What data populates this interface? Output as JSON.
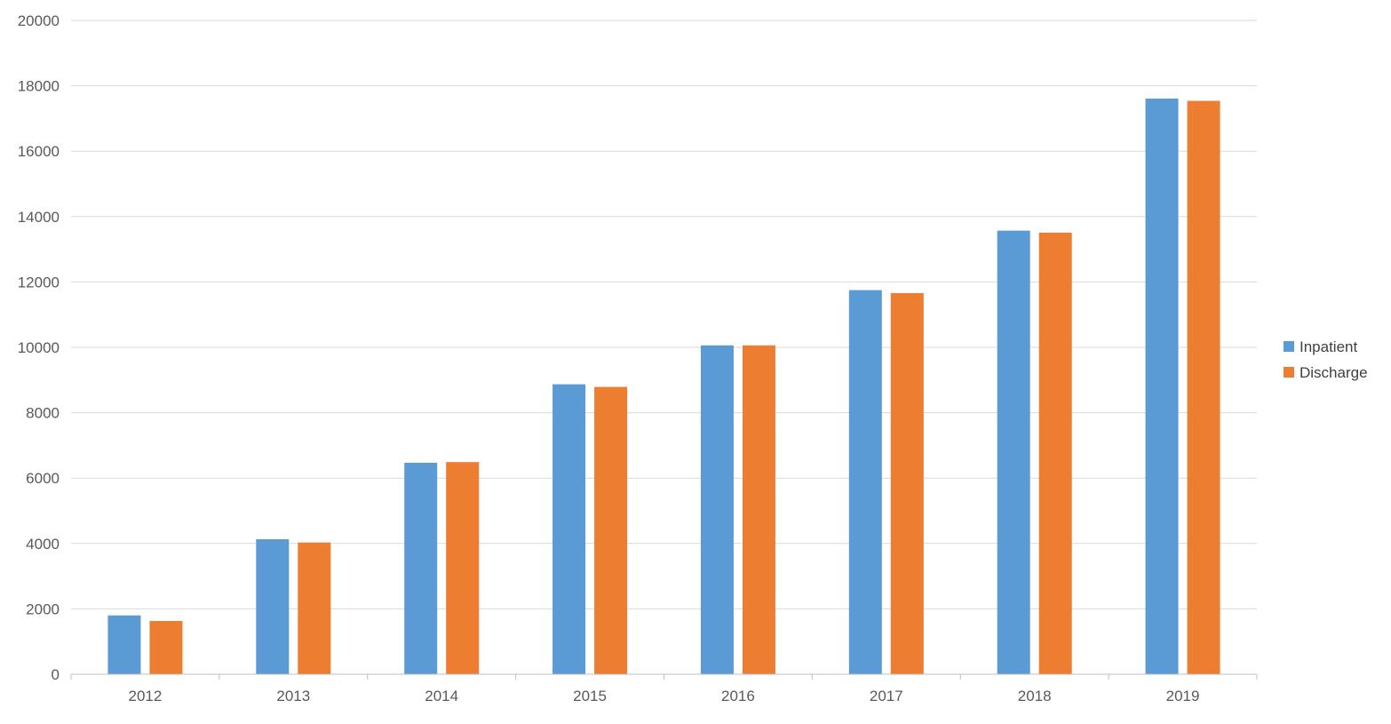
{
  "chart_data": {
    "type": "bar",
    "categories": [
      "2012",
      "2013",
      "2014",
      "2015",
      "2016",
      "2017",
      "2018",
      "2019"
    ],
    "series": [
      {
        "name": "Inpatient",
        "color": "#5b9bd5",
        "values": [
          1800,
          4130,
          6470,
          8870,
          10060,
          11750,
          13570,
          17610
        ]
      },
      {
        "name": "Discharge",
        "color": "#ed7d31",
        "values": [
          1630,
          4030,
          6490,
          8790,
          10060,
          11660,
          13510,
          17540
        ]
      }
    ],
    "ylim": [
      0,
      20000
    ],
    "yticks": [
      "0",
      "2000",
      "4000",
      "6000",
      "8000",
      "10000",
      "12000",
      "14000",
      "16000",
      "18000",
      "20000"
    ],
    "grid": true,
    "legend_position": "right"
  }
}
